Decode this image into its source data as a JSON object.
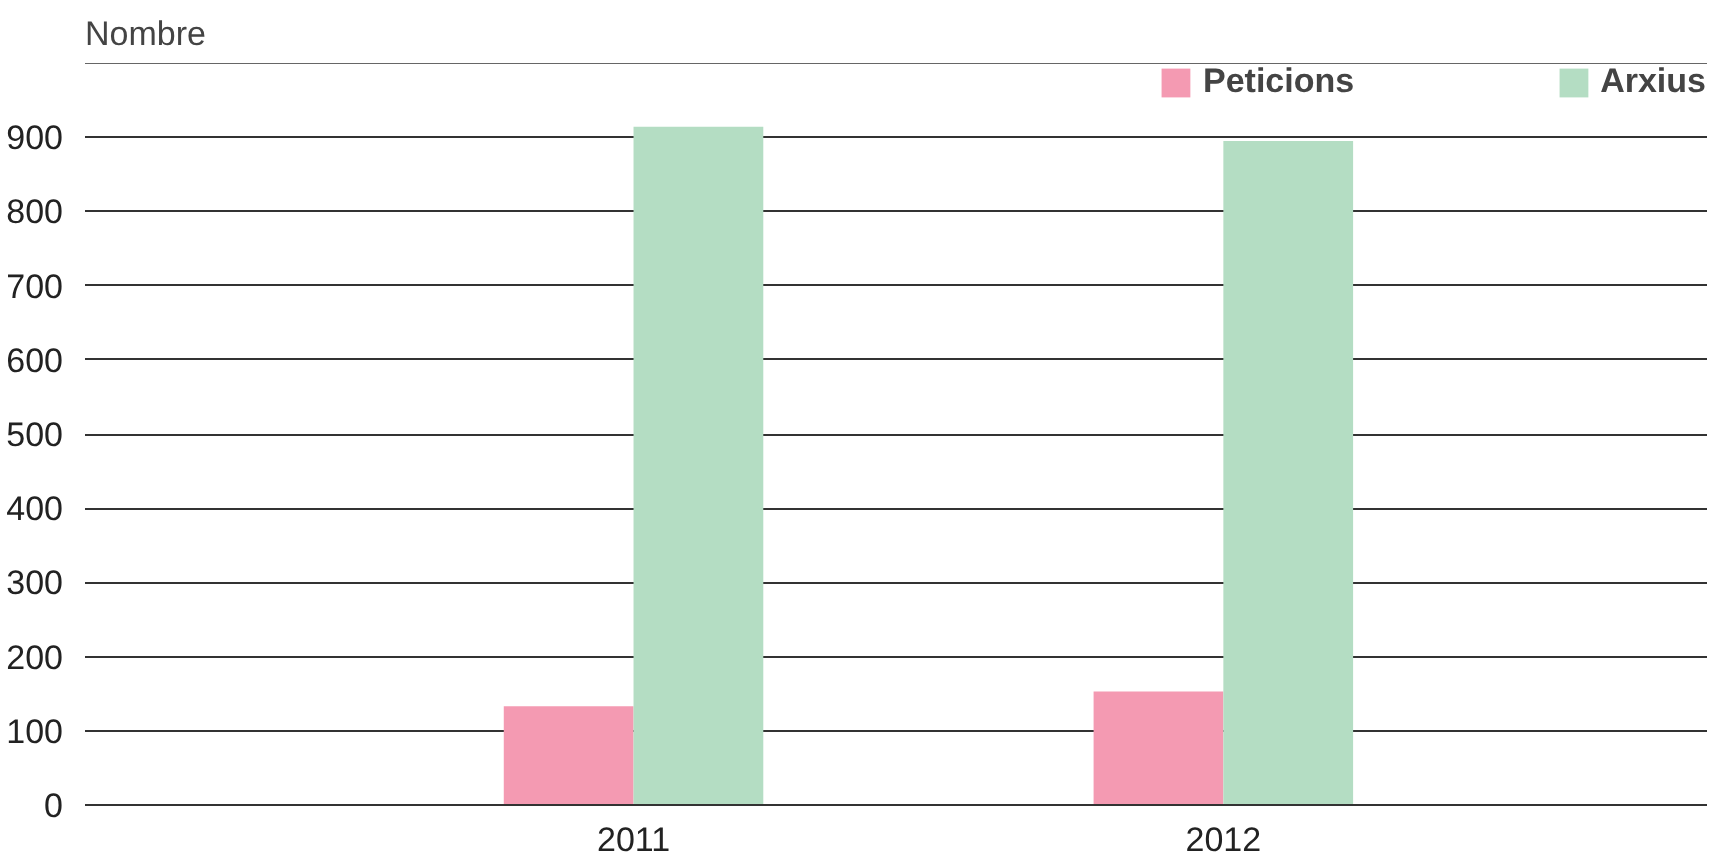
{
  "chart_data": {
    "type": "bar",
    "ylabel": "Nombre",
    "categories": [
      "2011",
      "2012"
    ],
    "series": [
      {
        "name": "Peticions",
        "color": "#f49ab2",
        "values": [
          133,
          153
        ]
      },
      {
        "name": "Arxius",
        "color": "#b4ddc3",
        "values": [
          914,
          895
        ]
      }
    ],
    "ylim": [
      0,
      1000
    ],
    "yticks": [
      0,
      100,
      200,
      300,
      400,
      500,
      600,
      700,
      800,
      900
    ],
    "grid": "y",
    "legend": "top right"
  }
}
